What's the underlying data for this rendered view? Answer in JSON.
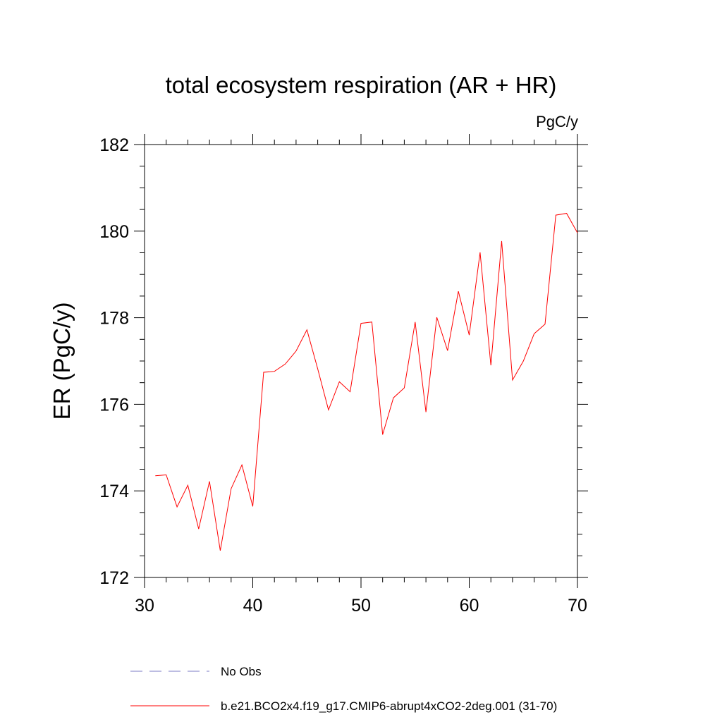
{
  "chart_data": {
    "type": "line",
    "title": "total ecosystem respiration (AR + HR)",
    "units": "PgC/y",
    "ylabel": "ER  (PgC/y)",
    "xlabel": "",
    "xlim": [
      30,
      70
    ],
    "ylim": [
      172,
      182
    ],
    "x_ticks": [
      30,
      40,
      50,
      60,
      70
    ],
    "y_ticks": [
      172,
      174,
      176,
      178,
      180,
      182
    ],
    "x_tick_labels": [
      "30",
      "40",
      "50",
      "60",
      "70"
    ],
    "y_tick_labels": [
      "172",
      "174",
      "176",
      "178",
      "180",
      "182"
    ],
    "grid": false,
    "legend_position": "bottom",
    "series": [
      {
        "name": "b.e21.BCO2x4.f19_g17.CMIP6-abrupt4xCO2-2deg.001 (31-70)",
        "color": "#ff0000",
        "style": "solid",
        "x": [
          31,
          32,
          33,
          34,
          35,
          36,
          37,
          38,
          39,
          40,
          41,
          42,
          43,
          44,
          45,
          46,
          47,
          48,
          49,
          50,
          51,
          52,
          53,
          54,
          55,
          56,
          57,
          58,
          59,
          60,
          61,
          62,
          63,
          64,
          65,
          66,
          67,
          68,
          69,
          70
        ],
        "y": [
          174.35,
          174.37,
          173.63,
          174.13,
          173.12,
          174.22,
          172.62,
          174.05,
          174.6,
          173.64,
          176.74,
          176.76,
          176.93,
          177.23,
          177.72,
          176.82,
          175.87,
          176.52,
          176.29,
          177.87,
          177.9,
          175.3,
          176.15,
          176.38,
          177.9,
          175.82,
          178.01,
          177.24,
          178.61,
          177.6,
          179.51,
          176.9,
          179.77,
          176.56,
          177.0,
          177.63,
          177.85,
          180.37,
          180.41,
          179.96
        ]
      }
    ],
    "legend": [
      {
        "label": "No Obs",
        "color": "#7b7bc6",
        "style": "dashed"
      },
      {
        "label": "b.e21.BCO2x4.f19_g17.CMIP6-abrupt4xCO2-2deg.001 (31-70)",
        "color": "#ff0000",
        "style": "solid"
      }
    ]
  }
}
